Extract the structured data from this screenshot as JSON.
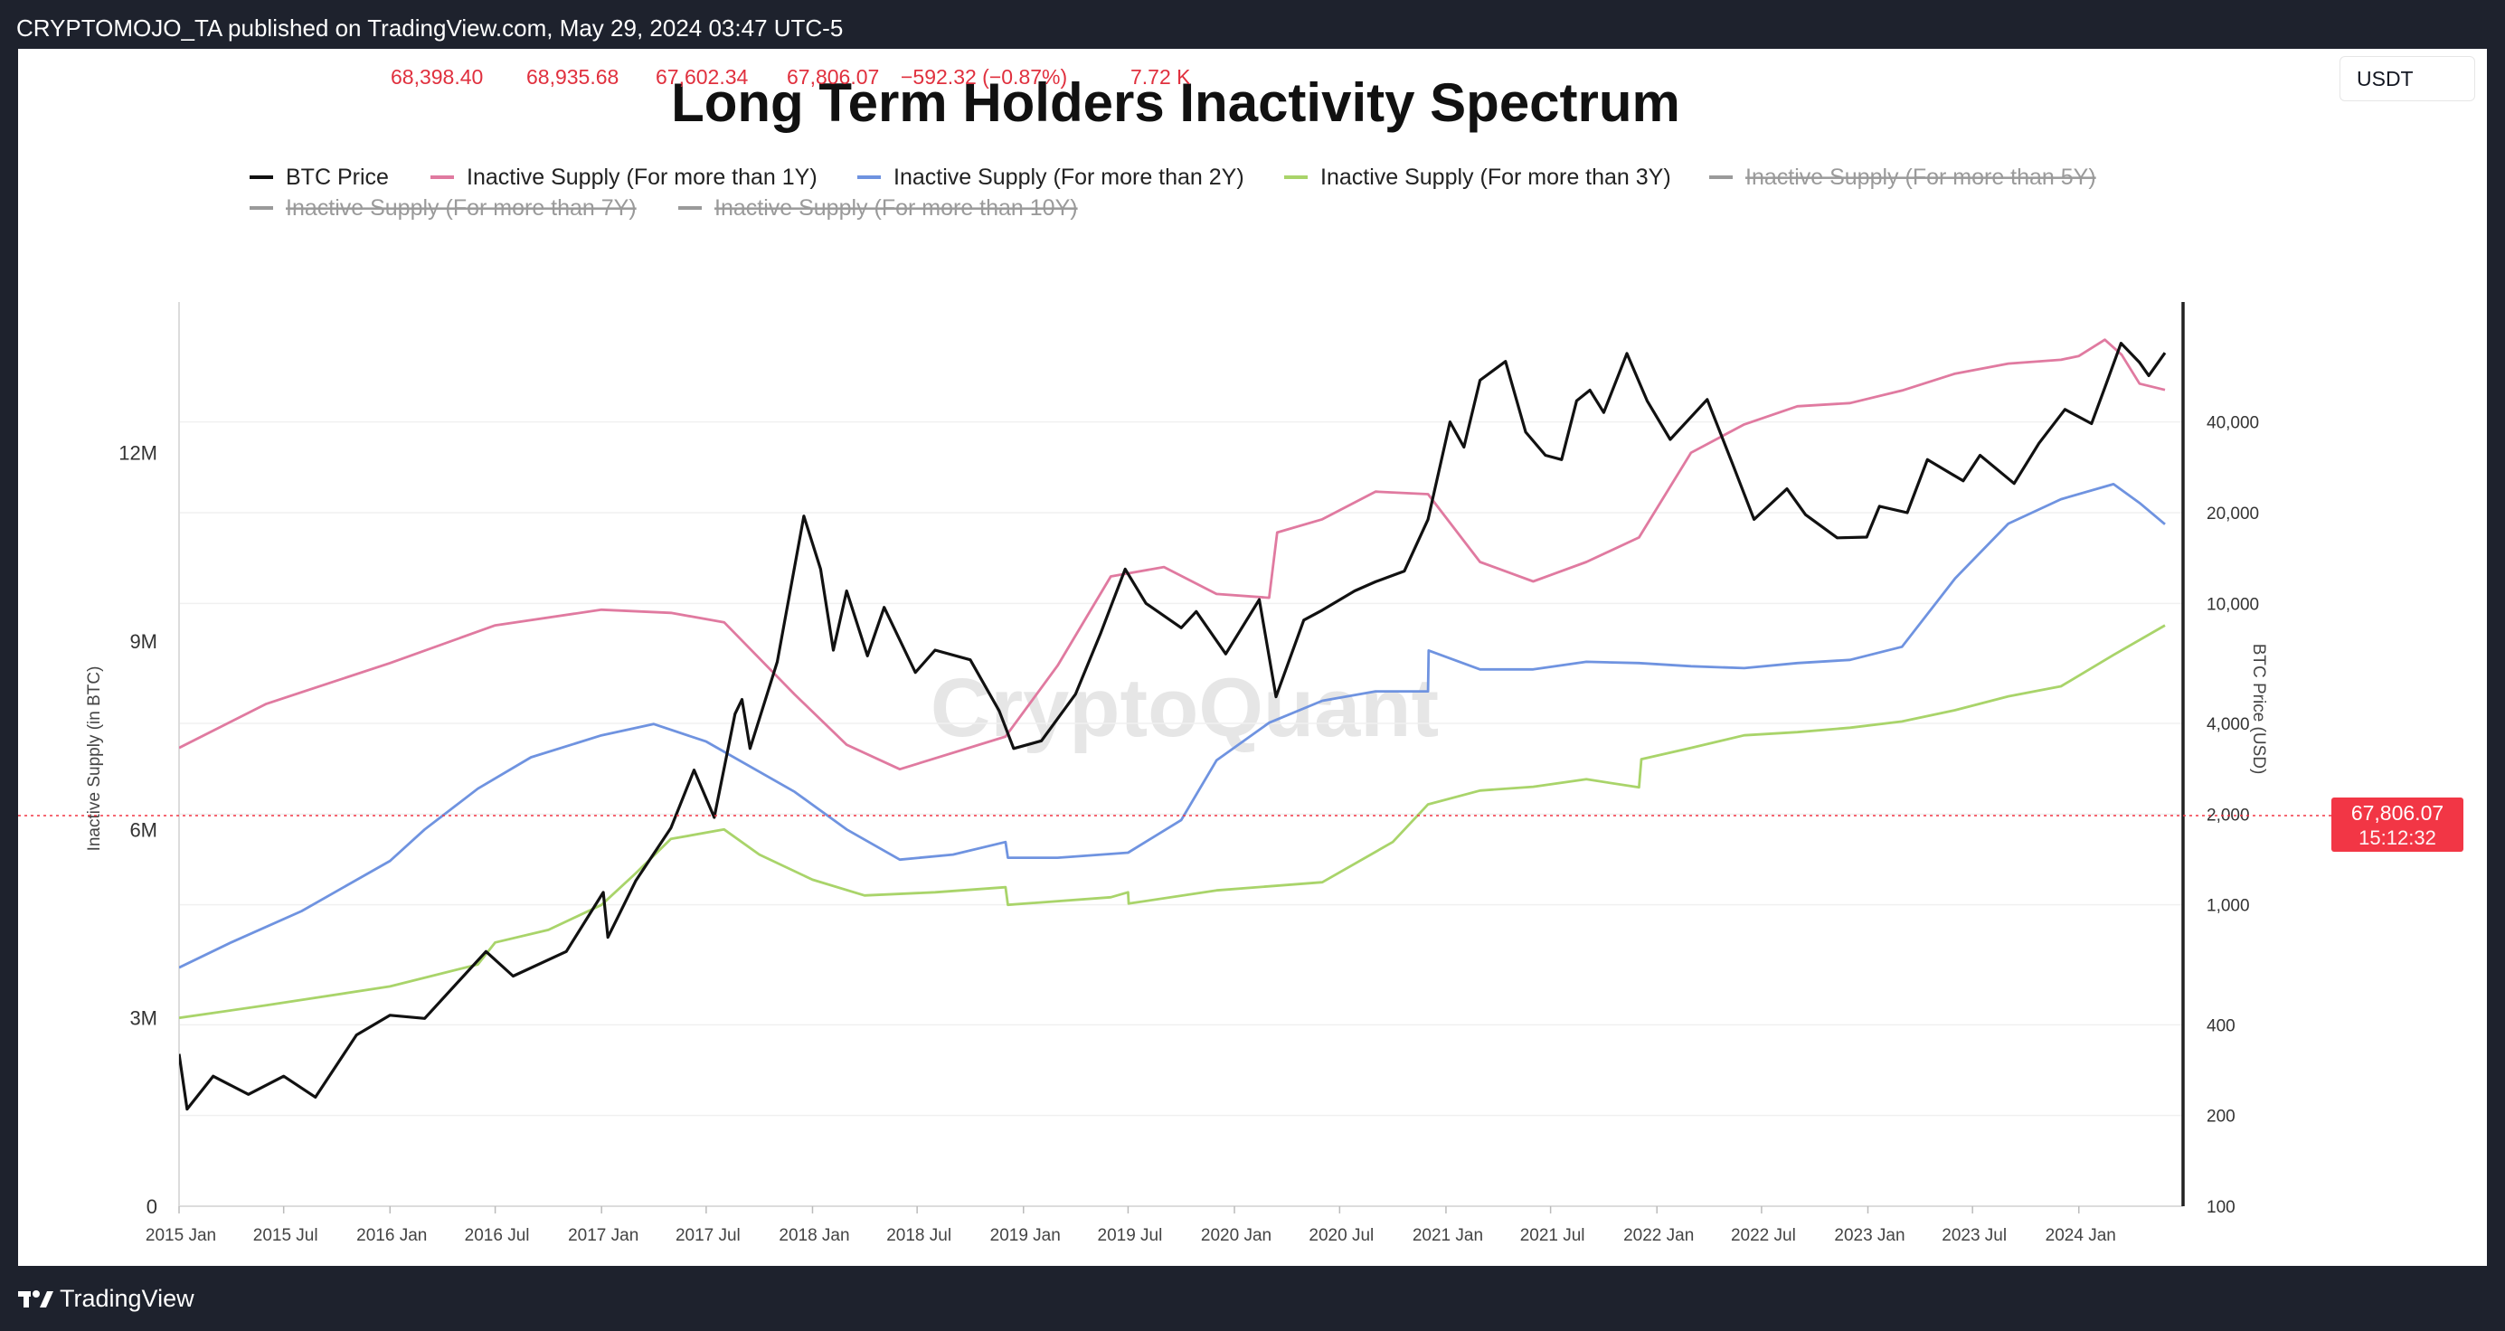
{
  "header": {
    "attribution": "CRYPTOMOJO_TA published on TradingView.com, May 29, 2024 03:47 UTC-5"
  },
  "symbol_info": {
    "open": "68,398.40",
    "high": "68,935.68",
    "low": "67,602.34",
    "close": "67,806.07",
    "change": "−592.32 (−0.87%)",
    "volume": "7.72 K"
  },
  "quote_currency": "USDT",
  "price_label": {
    "price": "67,806.07",
    "countdown": "15:12:32"
  },
  "colors": {
    "btc_price": "#111111",
    "lth_1y": "#e07aa0",
    "lth_2y": "#6f93e0",
    "lth_3y": "#a9d46a",
    "disabled": "#9a9a9a",
    "price_line": "#f23645",
    "tag_bg": "#f23645",
    "chrome_bg": "#1e222d"
  },
  "watermark": "CryptoQuant",
  "footer": {
    "brand": "TradingView",
    "logo_icon": "tradingview-logo-icon"
  },
  "chart_data": {
    "type": "line",
    "title": "Long Term Holders Inactivity Spectrum",
    "ylabel_left": "Inactive Supply (in BTC)",
    "ylabel_right": "BTC Price (USD)",
    "y_left_ticks": [
      "0",
      "3M",
      "6M",
      "9M",
      "12M"
    ],
    "y_left_values": [
      0,
      3000000,
      6000000,
      9000000,
      12000000
    ],
    "y_left_range": [
      0,
      14400000
    ],
    "y_right_scale": "log",
    "y_right_ticks": [
      "100",
      "200",
      "400",
      "1,000",
      "2,000",
      "4,000",
      "10,000",
      "20,000",
      "40,000"
    ],
    "y_right_values": [
      100,
      200,
      400,
      1000,
      2000,
      4000,
      10000,
      20000,
      40000
    ],
    "y_right_range": [
      100,
      100000
    ],
    "x_range": [
      "2015-01-01",
      "2024-05-29"
    ],
    "x_ticks": [
      "2015 Jan",
      "2015 Jul",
      "2016 Jan",
      "2016 Jul",
      "2017 Jan",
      "2017 Jul",
      "2018 Jan",
      "2018 Jul",
      "2019 Jan",
      "2019 Jul",
      "2020 Jan",
      "2020 Jul",
      "2021 Jan",
      "2021 Jul",
      "2022 Jan",
      "2022 Jul",
      "2023 Jan",
      "2023 Jul",
      "2024 Jan"
    ],
    "x_tick_dates": [
      "2015-01-01",
      "2015-07-01",
      "2016-01-01",
      "2016-07-01",
      "2017-01-01",
      "2017-07-01",
      "2018-01-01",
      "2018-07-01",
      "2019-01-01",
      "2019-07-01",
      "2020-01-01",
      "2020-07-01",
      "2021-01-01",
      "2021-07-01",
      "2022-01-01",
      "2022-07-01",
      "2023-01-01",
      "2023-07-01",
      "2024-01-01"
    ],
    "legend_position": "top",
    "legend": [
      {
        "label": "BTC Price",
        "color": "#111111",
        "active": true
      },
      {
        "label": "Inactive Supply (For more than 1Y)",
        "color": "#e07aa0",
        "active": true
      },
      {
        "label": "Inactive Supply (For more than 2Y)",
        "color": "#6f93e0",
        "active": true
      },
      {
        "label": "Inactive Supply (For more than 3Y)",
        "color": "#a9d46a",
        "active": true
      },
      {
        "label": "Inactive Supply (For more than 5Y)",
        "color": "#9a9a9a",
        "active": false
      },
      {
        "label": "Inactive Supply (For more than 7Y)",
        "color": "#9a9a9a",
        "active": false
      },
      {
        "label": "Inactive Supply (For more than 10Y)",
        "color": "#9a9a9a",
        "active": false
      }
    ],
    "series": [
      {
        "name": "BTC Price",
        "axis": "right",
        "x": [
          "2015-01-01",
          "2015-01-15",
          "2015-03-01",
          "2015-05-01",
          "2015-07-01",
          "2015-08-25",
          "2015-11-04",
          "2016-01-01",
          "2016-03-01",
          "2016-06-15",
          "2016-08-01",
          "2016-11-01",
          "2017-01-04",
          "2017-01-12",
          "2017-03-01",
          "2017-05-01",
          "2017-06-10",
          "2017-07-15",
          "2017-08-20",
          "2017-09-01",
          "2017-09-15",
          "2017-11-01",
          "2017-12-17",
          "2018-01-15",
          "2018-02-06",
          "2018-03-01",
          "2018-04-06",
          "2018-05-05",
          "2018-06-28",
          "2018-08-01",
          "2018-10-01",
          "2018-11-20",
          "2018-12-15",
          "2019-02-01",
          "2019-04-01",
          "2019-05-15",
          "2019-06-26",
          "2019-08-01",
          "2019-10-01",
          "2019-10-27",
          "2019-12-17",
          "2020-02-13",
          "2020-03-13",
          "2020-04-30",
          "2020-06-01",
          "2020-07-27",
          "2020-09-01",
          "2020-10-21",
          "2020-12-01",
          "2021-01-08",
          "2021-02-01",
          "2021-03-01",
          "2021-04-14",
          "2021-05-19",
          "2021-06-22",
          "2021-07-20",
          "2021-08-15",
          "2021-09-07",
          "2021-10-01",
          "2021-11-10",
          "2021-12-15",
          "2022-01-24",
          "2022-03-29",
          "2022-05-12",
          "2022-06-18",
          "2022-08-14",
          "2022-09-15",
          "2022-11-09",
          "2022-12-30",
          "2023-01-21",
          "2023-03-10",
          "2023-04-14",
          "2023-06-15",
          "2023-07-14",
          "2023-09-11",
          "2023-10-24",
          "2023-12-08",
          "2024-01-23",
          "2024-02-15",
          "2024-03-14",
          "2024-04-15",
          "2024-05-01",
          "2024-05-29"
        ],
        "values": [
          320,
          210,
          270,
          235,
          270,
          230,
          370,
          430,
          420,
          700,
          580,
          700,
          1100,
          780,
          1200,
          1800,
          2800,
          1950,
          4300,
          4800,
          3300,
          6400,
          19500,
          13000,
          7000,
          11000,
          6700,
          9700,
          5900,
          7000,
          6500,
          4400,
          3300,
          3500,
          5000,
          8000,
          13000,
          10000,
          8300,
          9400,
          6800,
          10300,
          4900,
          8800,
          9500,
          11000,
          11800,
          12800,
          19000,
          40000,
          33000,
          55000,
          63500,
          37000,
          31000,
          30000,
          47000,
          51000,
          43000,
          67500,
          47000,
          35000,
          47500,
          29000,
          19000,
          24000,
          19700,
          16500,
          16600,
          21000,
          20000,
          30000,
          25500,
          31000,
          25000,
          34000,
          44000,
          39500,
          52000,
          73000,
          63000,
          57000,
          67806
        ]
      },
      {
        "name": "Inactive Supply (For more than 1Y)",
        "axis": "left",
        "x": [
          "2015-01-01",
          "2015-06-01",
          "2016-01-01",
          "2016-07-01",
          "2017-01-01",
          "2017-05-01",
          "2017-08-01",
          "2017-12-01",
          "2018-03-01",
          "2018-06-01",
          "2018-12-01",
          "2019-03-01",
          "2019-06-01",
          "2019-09-01",
          "2019-12-01",
          "2020-03-01",
          "2020-03-15",
          "2020-06-01",
          "2020-09-01",
          "2020-12-01",
          "2021-03-01",
          "2021-06-01",
          "2021-09-01",
          "2021-12-01",
          "2022-03-01",
          "2022-06-01",
          "2022-09-01",
          "2022-12-01",
          "2023-03-01",
          "2023-06-01",
          "2023-09-01",
          "2023-12-01",
          "2024-01-01",
          "2024-02-15",
          "2024-03-15",
          "2024-04-15",
          "2024-05-29"
        ],
        "values": [
          7300000,
          8000000,
          8650000,
          9250000,
          9500000,
          9450000,
          9300000,
          8150000,
          7350000,
          6960000,
          7480000,
          8610000,
          10030000,
          10180000,
          9750000,
          9690000,
          10730000,
          10940000,
          11380000,
          11340000,
          10260000,
          9950000,
          10260000,
          10650000,
          12000000,
          12450000,
          12740000,
          12790000,
          12990000,
          13260000,
          13420000,
          13480000,
          13540000,
          13800000,
          13560000,
          13100000,
          13000000
        ]
      },
      {
        "name": "Inactive Supply (For more than 2Y)",
        "axis": "left",
        "x": [
          "2015-01-01",
          "2015-04-01",
          "2015-08-01",
          "2016-01-01",
          "2016-03-01",
          "2016-06-01",
          "2016-09-01",
          "2017-01-01",
          "2017-04-01",
          "2017-07-01",
          "2017-12-01",
          "2018-03-01",
          "2018-06-01",
          "2018-09-01",
          "2018-12-01",
          "2018-12-05",
          "2019-03-01",
          "2019-07-01",
          "2019-10-01",
          "2019-12-01",
          "2020-03-01",
          "2020-06-01",
          "2020-09-01",
          "2020-12-01",
          "2020-12-02",
          "2021-03-01",
          "2021-06-01",
          "2021-09-01",
          "2021-12-01",
          "2022-03-01",
          "2022-06-01",
          "2022-09-01",
          "2022-12-01",
          "2023-03-01",
          "2023-06-01",
          "2023-09-01",
          "2023-12-01",
          "2024-03-01",
          "2024-04-15",
          "2024-05-29"
        ],
        "values": [
          3800000,
          4200000,
          4700000,
          5500000,
          6000000,
          6650000,
          7150000,
          7500000,
          7680000,
          7400000,
          6600000,
          6000000,
          5520000,
          5600000,
          5800000,
          5550000,
          5550000,
          5630000,
          6150000,
          7100000,
          7700000,
          8050000,
          8200000,
          8200000,
          8850000,
          8550000,
          8550000,
          8670000,
          8650000,
          8600000,
          8570000,
          8650000,
          8700000,
          8910000,
          10000000,
          10870000,
          11260000,
          11500000,
          11200000,
          10860000
        ]
      },
      {
        "name": "Inactive Supply (For more than 3Y)",
        "axis": "left",
        "x": [
          "2015-01-01",
          "2015-06-01",
          "2016-01-01",
          "2016-06-01",
          "2016-07-01",
          "2016-10-01",
          "2017-01-01",
          "2017-03-01",
          "2017-05-01",
          "2017-08-01",
          "2017-10-01",
          "2018-01-01",
          "2018-04-01",
          "2018-08-01",
          "2018-12-01",
          "2018-12-05",
          "2019-06-01",
          "2019-07-01",
          "2019-07-02",
          "2019-12-01",
          "2020-06-01",
          "2020-10-01",
          "2020-12-01",
          "2021-03-01",
          "2021-06-01",
          "2021-09-01",
          "2021-12-01",
          "2021-12-05",
          "2022-03-01",
          "2022-06-01",
          "2022-09-01",
          "2022-12-01",
          "2023-03-01",
          "2023-06-01",
          "2023-09-01",
          "2023-12-01",
          "2024-03-01",
          "2024-05-29"
        ],
        "values": [
          3000000,
          3200000,
          3500000,
          3850000,
          4200000,
          4400000,
          4800000,
          5300000,
          5850000,
          6000000,
          5600000,
          5200000,
          4950000,
          5000000,
          5080000,
          4800000,
          4920000,
          5000000,
          4820000,
          5030000,
          5160000,
          5800000,
          6400000,
          6620000,
          6680000,
          6800000,
          6670000,
          7120000,
          7300000,
          7500000,
          7550000,
          7620000,
          7720000,
          7900000,
          8120000,
          8280000,
          8780000,
          9250000
        ]
      }
    ]
  }
}
